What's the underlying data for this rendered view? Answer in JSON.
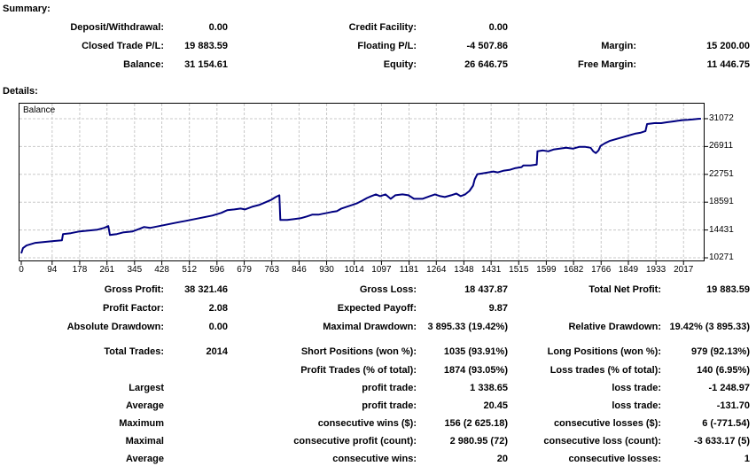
{
  "summary": {
    "heading": "Summary:",
    "rows": [
      [
        {
          "label": "Deposit/Withdrawal:",
          "value": "0.00"
        },
        {
          "label": "Credit Facility:",
          "value": "0.00"
        },
        null
      ],
      [
        {
          "label": "Closed Trade P/L:",
          "value": "19 883.59"
        },
        {
          "label": "Floating P/L:",
          "value": "-4 507.86"
        },
        {
          "label": "Margin:",
          "value": "15 200.00"
        }
      ],
      [
        {
          "label": "Balance:",
          "value": "31 154.61"
        },
        {
          "label": "Equity:",
          "value": "26 646.75"
        },
        {
          "label": "Free Margin:",
          "value": "11 446.75"
        }
      ]
    ]
  },
  "details": {
    "heading": "Details:",
    "rows": [
      [
        {
          "label": "Gross Profit:",
          "value": "38 321.46"
        },
        {
          "label": "Gross Loss:",
          "value": "18 437.87"
        },
        {
          "label": "Total Net Profit:",
          "value": "19 883.59"
        }
      ],
      [
        {
          "label": "Profit Factor:",
          "value": "2.08"
        },
        {
          "label": "Expected Payoff:",
          "value": "9.87"
        },
        null
      ],
      [
        {
          "label": "Absolute Drawdown:",
          "value": "0.00"
        },
        {
          "label": "Maximal Drawdown:",
          "value": "3 895.33 (19.42%)"
        },
        {
          "label": "Relative Drawdown:",
          "value": "19.42% (3 895.33)"
        }
      ],
      [
        {
          "label": "Total Trades:",
          "value": "2014"
        },
        {
          "label": "Short Positions (won %):",
          "value": "1035 (93.91%)"
        },
        {
          "label": "Long Positions (won %):",
          "value": "979 (92.13%)"
        }
      ],
      [
        null,
        {
          "label": "Profit Trades (% of total):",
          "value": "1874 (93.05%)"
        },
        {
          "label": "Loss trades (% of total):",
          "value": "140 (6.95%)"
        }
      ],
      [
        {
          "label": "Largest",
          "value": ""
        },
        {
          "label": "profit trade:",
          "value": "1 338.65"
        },
        {
          "label": "loss trade:",
          "value": "-1 248.97"
        }
      ],
      [
        {
          "label": "Average",
          "value": ""
        },
        {
          "label": "profit trade:",
          "value": "20.45"
        },
        {
          "label": "loss trade:",
          "value": "-131.70"
        }
      ],
      [
        {
          "label": "Maximum",
          "value": ""
        },
        {
          "label": "consecutive wins ($):",
          "value": "156 (2 625.18)"
        },
        {
          "label": "consecutive losses ($):",
          "value": "6 (-771.54)"
        }
      ],
      [
        {
          "label": "Maximal",
          "value": ""
        },
        {
          "label": "consecutive profit (count):",
          "value": "2 980.95 (72)"
        },
        {
          "label": "consecutive loss (count):",
          "value": "-3 633.17 (5)"
        }
      ],
      [
        {
          "label": "Average",
          "value": ""
        },
        {
          "label": "consecutive wins:",
          "value": "20"
        },
        {
          "label": "consecutive losses:",
          "value": "1"
        }
      ]
    ]
  },
  "chart_data": {
    "type": "line",
    "title": "Balance",
    "series_name": "Balance",
    "x_ticks": [
      0,
      94,
      178,
      261,
      345,
      428,
      512,
      596,
      679,
      763,
      846,
      930,
      1014,
      1097,
      1181,
      1264,
      1348,
      1431,
      1515,
      1599,
      1682,
      1766,
      1849,
      1933,
      2017
    ],
    "y_ticks": [
      10271,
      14431,
      18591,
      22751,
      26911,
      31072
    ],
    "x_domain": [
      0,
      2073
    ],
    "y_domain": [
      9876,
      33319
    ],
    "grid": true,
    "line_color": "#000080",
    "grid_color": "#c8c8c8",
    "border_color": "#000000",
    "points": [
      [
        0,
        10930
      ],
      [
        5,
        11720
      ],
      [
        16,
        12115
      ],
      [
        43,
        12510
      ],
      [
        70,
        12640
      ],
      [
        97,
        12770
      ],
      [
        124,
        12900
      ],
      [
        127,
        13825
      ],
      [
        151,
        13960
      ],
      [
        178,
        14220
      ],
      [
        205,
        14350
      ],
      [
        232,
        14480
      ],
      [
        253,
        14745
      ],
      [
        265,
        15010
      ],
      [
        270,
        13695
      ],
      [
        291,
        13825
      ],
      [
        312,
        14090
      ],
      [
        339,
        14220
      ],
      [
        361,
        14615
      ],
      [
        374,
        14880
      ],
      [
        393,
        14745
      ],
      [
        420,
        15010
      ],
      [
        447,
        15275
      ],
      [
        474,
        15540
      ],
      [
        501,
        15800
      ],
      [
        528,
        16065
      ],
      [
        555,
        16325
      ],
      [
        582,
        16590
      ],
      [
        609,
        16985
      ],
      [
        627,
        17380
      ],
      [
        649,
        17510
      ],
      [
        668,
        17640
      ],
      [
        681,
        17510
      ],
      [
        703,
        17905
      ],
      [
        724,
        18170
      ],
      [
        743,
        18565
      ],
      [
        762,
        18960
      ],
      [
        775,
        19355
      ],
      [
        786,
        19620
      ],
      [
        789,
        15930
      ],
      [
        810,
        15930
      ],
      [
        832,
        16060
      ],
      [
        851,
        16195
      ],
      [
        870,
        16460
      ],
      [
        886,
        16720
      ],
      [
        905,
        16720
      ],
      [
        918,
        16850
      ],
      [
        932,
        16985
      ],
      [
        945,
        17115
      ],
      [
        961,
        17245
      ],
      [
        975,
        17640
      ],
      [
        991,
        17905
      ],
      [
        1007,
        18170
      ],
      [
        1023,
        18430
      ],
      [
        1039,
        18825
      ],
      [
        1053,
        19220
      ],
      [
        1066,
        19485
      ],
      [
        1080,
        19750
      ],
      [
        1093,
        19485
      ],
      [
        1109,
        19750
      ],
      [
        1125,
        19090
      ],
      [
        1139,
        19620
      ],
      [
        1161,
        19750
      ],
      [
        1179,
        19620
      ],
      [
        1196,
        19090
      ],
      [
        1222,
        19090
      ],
      [
        1244,
        19485
      ],
      [
        1260,
        19750
      ],
      [
        1276,
        19485
      ],
      [
        1290,
        19355
      ],
      [
        1309,
        19620
      ],
      [
        1325,
        19880
      ],
      [
        1338,
        19485
      ],
      [
        1352,
        19750
      ],
      [
        1365,
        20275
      ],
      [
        1376,
        21065
      ],
      [
        1381,
        21990
      ],
      [
        1389,
        22780
      ],
      [
        1406,
        22910
      ],
      [
        1422,
        23040
      ],
      [
        1438,
        23170
      ],
      [
        1451,
        23040
      ],
      [
        1470,
        23300
      ],
      [
        1489,
        23435
      ],
      [
        1505,
        23695
      ],
      [
        1524,
        23830
      ],
      [
        1529,
        24090
      ],
      [
        1551,
        24090
      ],
      [
        1570,
        24225
      ],
      [
        1572,
        26200
      ],
      [
        1589,
        26330
      ],
      [
        1605,
        26200
      ],
      [
        1621,
        26460
      ],
      [
        1640,
        26590
      ],
      [
        1659,
        26720
      ],
      [
        1680,
        26590
      ],
      [
        1699,
        26855
      ],
      [
        1718,
        26855
      ],
      [
        1734,
        26720
      ],
      [
        1742,
        26200
      ],
      [
        1750,
        25935
      ],
      [
        1758,
        26330
      ],
      [
        1764,
        26985
      ],
      [
        1777,
        27380
      ],
      [
        1793,
        27775
      ],
      [
        1812,
        28040
      ],
      [
        1831,
        28300
      ],
      [
        1850,
        28565
      ],
      [
        1869,
        28830
      ],
      [
        1885,
        28960
      ],
      [
        1901,
        29220
      ],
      [
        1906,
        30275
      ],
      [
        1928,
        30405
      ],
      [
        1949,
        30405
      ],
      [
        1966,
        30535
      ],
      [
        1982,
        30650
      ],
      [
        1998,
        30750
      ],
      [
        2014,
        30850
      ],
      [
        2030,
        30900
      ],
      [
        2046,
        30980
      ],
      [
        2062,
        31055
      ],
      [
        2070,
        31072
      ]
    ]
  }
}
